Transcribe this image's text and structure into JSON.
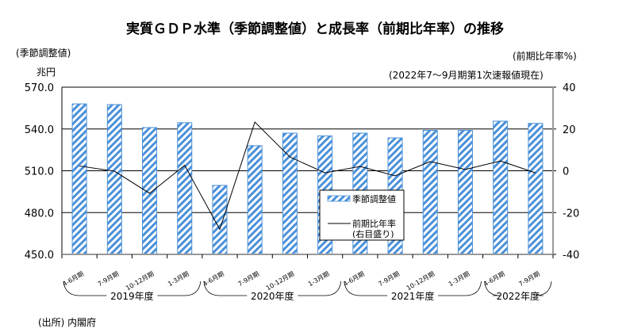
{
  "title": "実質ＧＤＰ水準（季節調整値）と成長率（前期比年率）の推移",
  "left_axis_note": "(季節調整値)",
  "left_axis_unit": "兆円",
  "right_axis_note": "(前期比年率%)",
  "as_of_note": "(2022年7～9月期第1次速報値現在)",
  "source": "(出所) 内閣府",
  "colors": {
    "bar": "#4a90d9",
    "line": "#000000",
    "grid": "#000000"
  },
  "chart_data": {
    "type": "bar+line",
    "title": "実質ＧＤＰ水準（季節調整値）と成長率（前期比年率）の推移",
    "categories": [
      "4-6月期",
      "7-9月期",
      "10-12月期",
      "1-3月期",
      "4-6月期",
      "7-9月期",
      "10-12月期",
      "1-3月期",
      "4-6月期",
      "7-9月期",
      "10-12月期",
      "1-3月期",
      "4-6月期",
      "7-9月期"
    ],
    "groups": [
      {
        "label": "2019年度",
        "span": [
          0,
          3
        ]
      },
      {
        "label": "2020年度",
        "span": [
          4,
          7
        ]
      },
      {
        "label": "2021年度",
        "span": [
          8,
          11
        ]
      },
      {
        "label": "2022年度",
        "span": [
          12,
          13
        ]
      }
    ],
    "left_axis": {
      "ylim": [
        450,
        570
      ],
      "ticks": [
        "450.0",
        "480.0",
        "510.0",
        "540.0",
        "570.0"
      ],
      "unit": "兆円"
    },
    "right_axis": {
      "ylim": [
        -40,
        40
      ],
      "ticks": [
        "-40",
        "-20",
        "0",
        "20",
        "40"
      ],
      "unit": "%"
    },
    "grid": true,
    "legend_placement": "center-right",
    "series": [
      {
        "name": "季節調整値",
        "type": "bar",
        "axis": "left",
        "values": [
          558.0,
          557.5,
          541.0,
          544.5,
          499.5,
          528.0,
          537.0,
          535.0,
          537.0,
          533.6,
          539.0,
          539.0,
          545.6,
          544.0
        ]
      },
      {
        "name": "前期比年率",
        "name_note": "(右目盛り)",
        "type": "line",
        "axis": "right",
        "values": [
          2.3,
          -0.2,
          -10.8,
          2.6,
          -28.0,
          23.3,
          6.6,
          -1.0,
          2.1,
          -2.4,
          4.4,
          0.6,
          4.7,
          -1.0
        ]
      }
    ]
  }
}
